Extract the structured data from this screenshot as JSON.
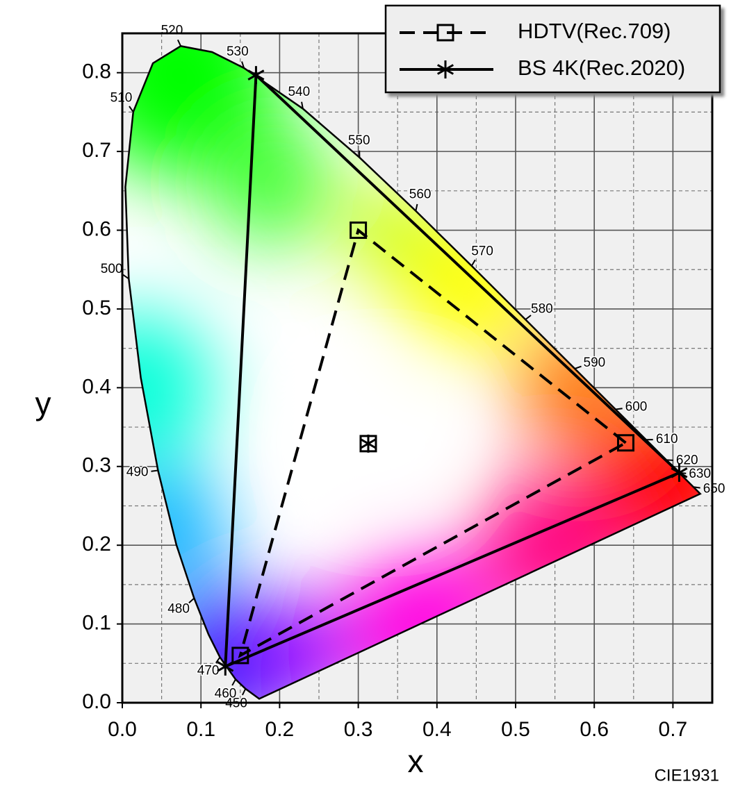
{
  "chart_data": {
    "type": "line",
    "xlabel": "x",
    "ylabel": "y",
    "annotation": "CIE1931",
    "xlim": [
      0,
      0.75
    ],
    "ylim": [
      0,
      0.85
    ],
    "xticks": [
      {
        "value": 0,
        "label": "0.0"
      },
      0.1,
      0.2,
      0.3,
      0.4,
      0.5,
      0.6,
      0.7
    ],
    "yticks": [
      {
        "value": 0,
        "label": "0.0"
      },
      0.1,
      0.2,
      0.3,
      0.4,
      0.5,
      0.6,
      0.7,
      0.8
    ],
    "grid": true,
    "minor_grid": true,
    "legend": "top-right",
    "spectral_locus": {
      "color": "#000000",
      "x": [
        0.1741,
        0.1566,
        0.144,
        0.1241,
        0.1096,
        0.0913,
        0.0687,
        0.0454,
        0.0235,
        0.0082,
        0.0039,
        0.0139,
        0.0389,
        0.0743,
        0.1142,
        0.1547,
        0.2296,
        0.3016,
        0.3731,
        0.4441,
        0.5125,
        0.5752,
        0.627,
        0.6658,
        0.6915,
        0.7079,
        0.726,
        0.7347
      ],
      "y": [
        0.005,
        0.0177,
        0.0297,
        0.0578,
        0.0868,
        0.1327,
        0.2007,
        0.295,
        0.4127,
        0.5384,
        0.6548,
        0.7502,
        0.812,
        0.8338,
        0.8262,
        0.8059,
        0.7543,
        0.6923,
        0.6245,
        0.5547,
        0.4866,
        0.4242,
        0.3725,
        0.334,
        0.3083,
        0.292,
        0.274,
        0.2653
      ],
      "wavelength_labels": [
        null,
        "450",
        "460",
        "470",
        null,
        "480",
        null,
        "490",
        null,
        "500",
        null,
        "510",
        null,
        "520",
        null,
        "530",
        "540",
        "550",
        "560",
        "570",
        "580",
        "590",
        "600",
        "610",
        "620",
        "630",
        "650",
        null
      ]
    },
    "series": [
      {
        "name": "HDTV(Rec.709)",
        "color": "#000000",
        "dashed": true,
        "marker": "square",
        "x": [
          0.64,
          0.3,
          0.15
        ],
        "y": [
          0.33,
          0.6,
          0.06
        ],
        "white": [
          0.3127,
          0.329
        ]
      },
      {
        "name": "BS 4K(Rec.2020)",
        "color": "#000000",
        "dashed": false,
        "marker": "asterisk",
        "x": [
          0.708,
          0.17,
          0.131
        ],
        "y": [
          0.292,
          0.797,
          0.046
        ],
        "white": [
          0.3127,
          0.329
        ]
      }
    ]
  }
}
